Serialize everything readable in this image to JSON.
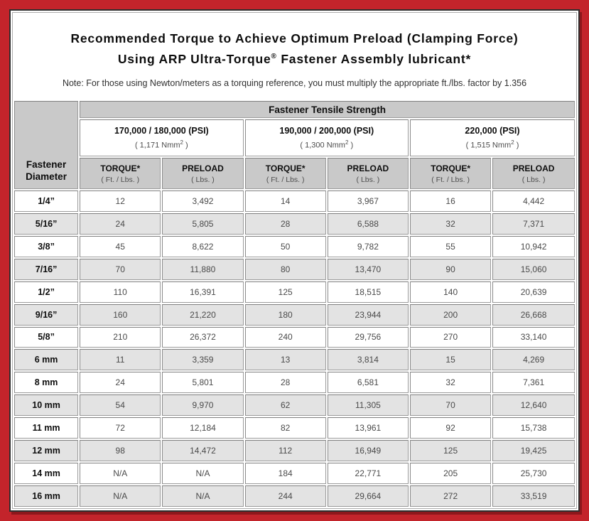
{
  "header": {
    "title_line1": "Recommended Torque to Achieve Optimum Preload (Clamping Force)",
    "title_line2_pre": "Using ARP Ultra-Torque",
    "title_line2_sup": "®",
    "title_line2_post": " Fastener Assembly lubricant*",
    "note": "Note: For those using Newton/meters as a torquing reference, you must multiply the appropriate ft./lbs. factor by 1.356"
  },
  "table": {
    "tensile_strength_header": "Fastener Tensile Strength",
    "diameter_header": "Fastener Diameter",
    "groups": [
      {
        "psi": "170,000 / 180,000 (PSI)",
        "nmm_prefix": "( 1,171 Nmm",
        "nmm_sup": "2",
        "nmm_suffix": " )"
      },
      {
        "psi": "190,000 / 200,000 (PSI)",
        "nmm_prefix": "( 1,300 Nmm",
        "nmm_sup": "2",
        "nmm_suffix": " )"
      },
      {
        "psi": "220,000 (PSI)",
        "nmm_prefix": "( 1,515 Nmm",
        "nmm_sup": "2",
        "nmm_suffix": " )"
      }
    ],
    "col_headers": {
      "torque": "TORQUE*",
      "torque_sub": "( Ft. / Lbs. )",
      "preload": "PRELOAD",
      "preload_sub": "( Lbs. )"
    },
    "rows": [
      {
        "diameter": "1/4”",
        "values": [
          "12",
          "3,492",
          "14",
          "3,967",
          "16",
          "4,442"
        ]
      },
      {
        "diameter": "5/16”",
        "values": [
          "24",
          "5,805",
          "28",
          "6,588",
          "32",
          "7,371"
        ]
      },
      {
        "diameter": "3/8”",
        "values": [
          "45",
          "8,622",
          "50",
          "9,782",
          "55",
          "10,942"
        ]
      },
      {
        "diameter": "7/16”",
        "values": [
          "70",
          "11,880",
          "80",
          "13,470",
          "90",
          "15,060"
        ]
      },
      {
        "diameter": "1/2”",
        "values": [
          "110",
          "16,391",
          "125",
          "18,515",
          "140",
          "20,639"
        ]
      },
      {
        "diameter": "9/16”",
        "values": [
          "160",
          "21,220",
          "180",
          "23,944",
          "200",
          "26,668"
        ]
      },
      {
        "diameter": "5/8”",
        "values": [
          "210",
          "26,372",
          "240",
          "29,756",
          "270",
          "33,140"
        ]
      },
      {
        "diameter": "6 mm",
        "values": [
          "11",
          "3,359",
          "13",
          "3,814",
          "15",
          "4,269"
        ]
      },
      {
        "diameter": "8 mm",
        "values": [
          "24",
          "5,801",
          "28",
          "6,581",
          "32",
          "7,361"
        ]
      },
      {
        "diameter": "10 mm",
        "values": [
          "54",
          "9,970",
          "62",
          "11,305",
          "70",
          "12,640"
        ]
      },
      {
        "diameter": "11 mm",
        "values": [
          "72",
          "12,184",
          "82",
          "13,961",
          "92",
          "15,738"
        ]
      },
      {
        "diameter": "12 mm",
        "values": [
          "98",
          "14,472",
          "112",
          "16,949",
          "125",
          "19,425"
        ]
      },
      {
        "diameter": "14 mm",
        "values": [
          "N/A",
          "N/A",
          "184",
          "22,771",
          "205",
          "25,730"
        ]
      },
      {
        "diameter": "16 mm",
        "values": [
          "N/A",
          "N/A",
          "244",
          "29,664",
          "272",
          "33,519"
        ]
      }
    ]
  },
  "colors": {
    "border_red": "#c3242b",
    "frame_border": "#2e2e2e",
    "hairline": "#ababab",
    "header_gray": "#c9c9c9",
    "row_stripe_gray": "#e3e3e3",
    "cell_border": "#8f8f8f"
  }
}
